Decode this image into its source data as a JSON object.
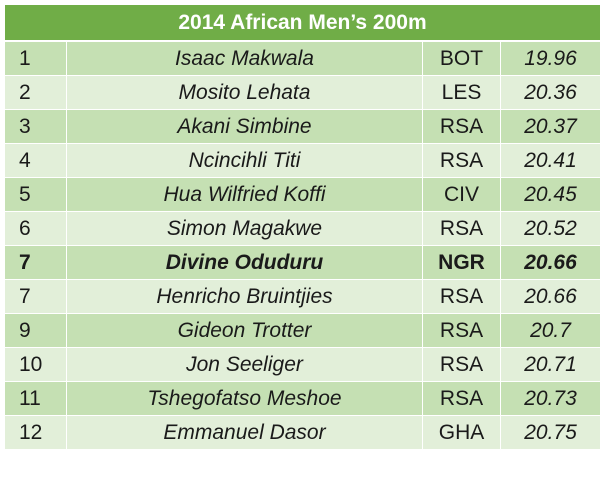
{
  "title": "2014 African Men’s 200m",
  "rows": [
    {
      "rank": "1",
      "name": "Isaac Makwala",
      "country": "BOT",
      "time": "19.96",
      "highlight": false
    },
    {
      "rank": "2",
      "name": "Mosito Lehata",
      "country": "LES",
      "time": "20.36",
      "highlight": false
    },
    {
      "rank": "3",
      "name": "Akani Simbine",
      "country": "RSA",
      "time": "20.37",
      "highlight": false
    },
    {
      "rank": "4",
      "name": "Ncincihli Titi",
      "country": "RSA",
      "time": "20.41",
      "highlight": false
    },
    {
      "rank": "5",
      "name": "Hua Wilfried Koffi",
      "country": "CIV",
      "time": "20.45",
      "highlight": false
    },
    {
      "rank": "6",
      "name": "Simon Magakwe",
      "country": "RSA",
      "time": "20.52",
      "highlight": false
    },
    {
      "rank": "7",
      "name": "Divine Oduduru",
      "country": "NGR",
      "time": "20.66",
      "highlight": true
    },
    {
      "rank": "7",
      "name": "Henricho Bruintjies",
      "country": "RSA",
      "time": "20.66",
      "highlight": false
    },
    {
      "rank": "9",
      "name": "Gideon Trotter",
      "country": "RSA",
      "time": "20.7",
      "highlight": false
    },
    {
      "rank": "10",
      "name": "Jon Seeliger",
      "country": "RSA",
      "time": "20.71",
      "highlight": false
    },
    {
      "rank": "11",
      "name": "Tshegofatso Meshoe",
      "country": "RSA",
      "time": "20.73",
      "highlight": false
    },
    {
      "rank": "12",
      "name": "Emmanuel Dasor",
      "country": "GHA",
      "time": "20.75",
      "highlight": false
    }
  ],
  "colors": {
    "header_bg": "#70ad47",
    "row_dark": "#c5e0b3",
    "row_light": "#e2efd9"
  }
}
